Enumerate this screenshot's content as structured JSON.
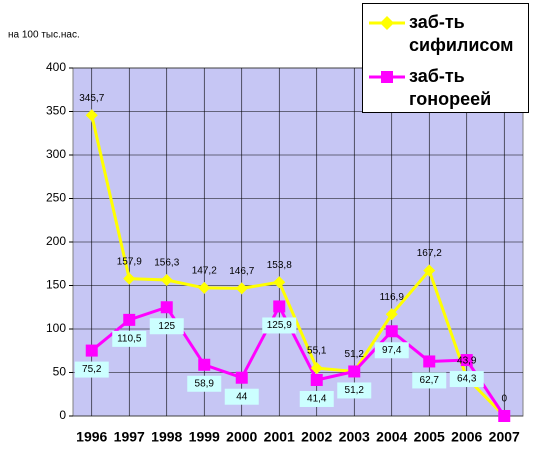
{
  "chart_data": {
    "type": "line",
    "y_label": "на 100 тыс.нас.",
    "categories": [
      "1996",
      "1997",
      "1998",
      "1999",
      "2000",
      "2001",
      "2002",
      "2003",
      "2004",
      "2005",
      "2006",
      "2007"
    ],
    "series": [
      {
        "name": "заб-ть сифилисом",
        "color": "#ffff00",
        "values": [
          345.7,
          157.9,
          156.3,
          147.2,
          146.7,
          153.8,
          55.1,
          51.2,
          116.9,
          167.2,
          43.9,
          0
        ],
        "value_labels": [
          "345,7",
          "157,9",
          "156,3",
          "147,2",
          "146,7",
          "153,8",
          "55,1",
          "51,2",
          "116,9",
          "167,2",
          "43,9",
          "0"
        ]
      },
      {
        "name": "заб-ть гонореей",
        "color": "#ff00ff",
        "values": [
          75.2,
          110.5,
          125,
          58.9,
          44,
          125.9,
          41.4,
          51.2,
          97.4,
          62.7,
          64.3,
          0
        ],
        "value_labels": [
          "75,2",
          "110,5",
          "125",
          "58,9",
          "44",
          "125,9",
          "41,4",
          "51,2",
          "97,4",
          "62,7",
          "64,3",
          null
        ]
      }
    ],
    "ylim": [
      0,
      400
    ],
    "yticks": [
      0,
      50,
      100,
      150,
      200,
      250,
      300,
      350,
      400
    ],
    "grid": true
  }
}
